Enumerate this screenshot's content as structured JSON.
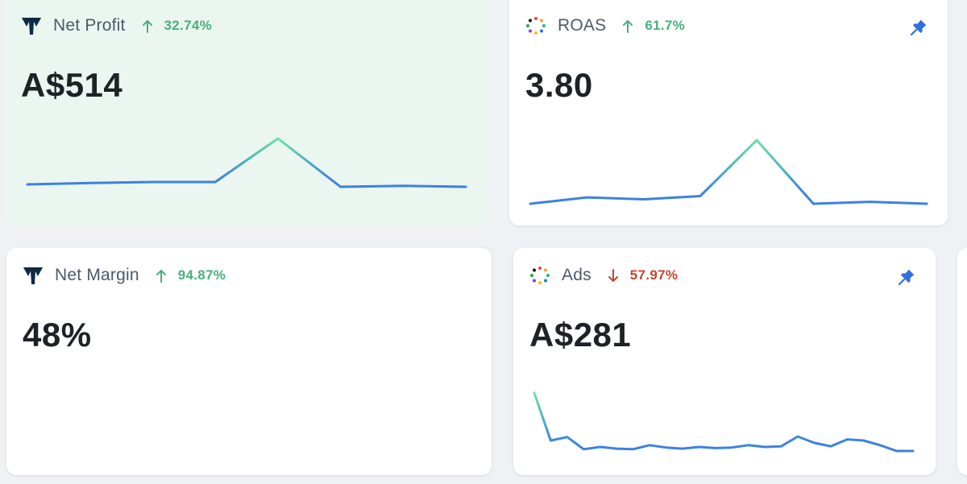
{
  "cards": {
    "net_profit": {
      "title": "Net Profit",
      "logo": "triple-whale-logo",
      "delta": "32.74%",
      "direction": "up",
      "value": "A$514",
      "highlighted": true,
      "sparkline": [
        0.05,
        0.08,
        0.1,
        0.1,
        1.0,
        0.0,
        0.02,
        0.0
      ]
    },
    "roas": {
      "title": "ROAS",
      "logo": "dots-ring-logo",
      "delta": "61.7%",
      "direction": "up",
      "value": "3.80",
      "pinned": true,
      "sparkline": [
        0.0,
        0.1,
        0.07,
        0.12,
        1.0,
        0.0,
        0.03,
        0.0
      ]
    },
    "net_margin": {
      "title": "Net Margin",
      "logo": "triple-whale-logo",
      "delta": "94.87%",
      "direction": "up",
      "value": "48%"
    },
    "ads": {
      "title": "Ads",
      "logo": "dots-ring-logo",
      "delta": "57.97%",
      "direction": "down",
      "value": "A$281",
      "pinned": true,
      "sparkline": [
        1.0,
        0.18,
        0.24,
        0.03,
        0.07,
        0.04,
        0.03,
        0.1,
        0.06,
        0.04,
        0.07,
        0.05,
        0.06,
        0.1,
        0.07,
        0.08,
        0.25,
        0.14,
        0.08,
        0.2,
        0.18,
        0.1,
        0.0,
        0.0
      ]
    }
  },
  "colors": {
    "positive": "#46b07b",
    "negative": "#c0472f",
    "pin": "#2f6fde",
    "spark_top": "#6ee3a4",
    "spark_line": "#3b82e0",
    "highlight_bg": "#eaf6ef"
  }
}
